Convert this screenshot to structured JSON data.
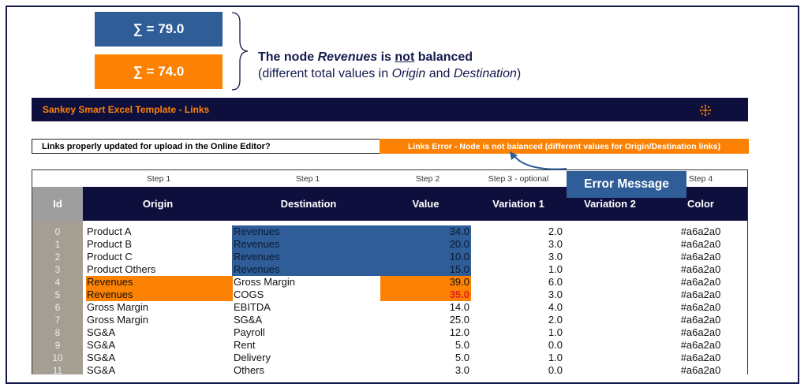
{
  "sum_origin": "∑ = 79.0",
  "sum_destination": "∑ = 74.0",
  "note": {
    "line1_prefix": "The node ",
    "node_name": "Revenues",
    "line1_mid": " is ",
    "line1_not": "not",
    "line1_suffix": " balanced",
    "line2_a": "(different total values in ",
    "line2_origin": "Origin",
    "line2_and": " and ",
    "line2_destination": "Destination",
    "line2_end": ")"
  },
  "title": "Sankey Smart Excel Template - Links",
  "check_question": "Links properly updated for upload in the Online Editor?",
  "check_status": "Links Error - Node is not balanced (different values for Origin/Destination links)",
  "error_label": "Error Message",
  "steps": {
    "origin": "Step 1",
    "destination": "Step 1",
    "value": "Step 2",
    "variations": "Step 3 - optional",
    "color": "Step 4"
  },
  "columns": {
    "id": "Id",
    "origin": "Origin",
    "destination": "Destination",
    "value": "Value",
    "variation1": "Variation 1",
    "variation2": "Variation 2",
    "color": "Color"
  },
  "rows": [
    {
      "id": "0",
      "origin": "Product A",
      "destination": "Revenues",
      "value": "34.0",
      "variation1": "2.0",
      "color": "#a6a2a0"
    },
    {
      "id": "1",
      "origin": "Product B",
      "destination": "Revenues",
      "value": "20.0",
      "variation1": "3.0",
      "color": "#a6a2a0"
    },
    {
      "id": "2",
      "origin": "Product C",
      "destination": "Revenues",
      "value": "10.0",
      "variation1": "3.0",
      "color": "#a6a2a0"
    },
    {
      "id": "3",
      "origin": "Product Others",
      "destination": "Revenues",
      "value": "15.0",
      "variation1": "1.0",
      "color": "#a6a2a0"
    },
    {
      "id": "4",
      "origin": "Revenues",
      "destination": "Gross Margin",
      "value": "39.0",
      "variation1": "6.0",
      "color": "#a6a2a0"
    },
    {
      "id": "5",
      "origin": "Revenues",
      "destination": "COGS",
      "value": "35.0",
      "variation1": "3.0",
      "color": "#a6a2a0"
    },
    {
      "id": "6",
      "origin": "Gross Margin",
      "destination": "EBITDA",
      "value": "14.0",
      "variation1": "4.0",
      "color": "#a6a2a0"
    },
    {
      "id": "7",
      "origin": "Gross Margin",
      "destination": "SG&A",
      "value": "25.0",
      "variation1": "2.0",
      "color": "#a6a2a0"
    },
    {
      "id": "8",
      "origin": "SG&A",
      "destination": "Payroll",
      "value": "12.0",
      "variation1": "1.0",
      "color": "#a6a2a0"
    },
    {
      "id": "9",
      "origin": "SG&A",
      "destination": "Rent",
      "value": "5.0",
      "variation1": "0.0",
      "color": "#a6a2a0"
    },
    {
      "id": "10",
      "origin": "SG&A",
      "destination": "Delivery",
      "value": "5.0",
      "variation1": "1.0",
      "color": "#a6a2a0"
    },
    {
      "id": "11",
      "origin": "SG&A",
      "destination": "Others",
      "value": "3.0",
      "variation1": "0.0",
      "color": "#a6a2a0"
    }
  ],
  "colors": {
    "navy": "#0f0f3e",
    "blue": "#2e5d97",
    "orange": "#fd8203",
    "error_red": "#e02020",
    "id_column": "#a59e93"
  }
}
